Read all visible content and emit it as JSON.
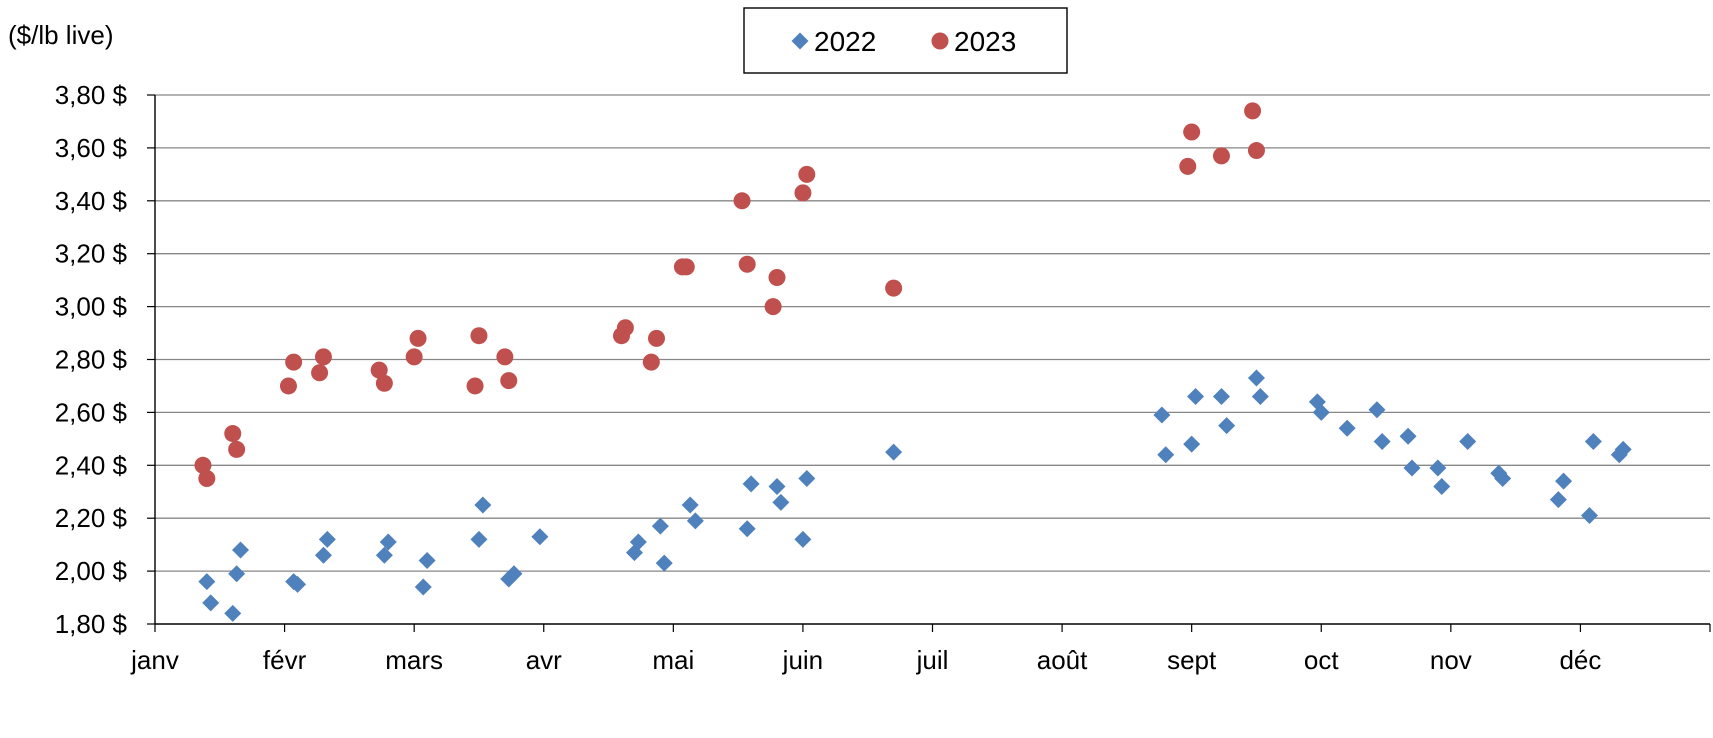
{
  "chart_data": {
    "type": "scatter",
    "title": "",
    "ylabel": "($/lb live)",
    "xlabel": "",
    "ylim": [
      1.8,
      3.8
    ],
    "yticks": [
      1.8,
      2.0,
      2.2,
      2.4,
      2.6,
      2.8,
      3.0,
      3.2,
      3.4,
      3.6,
      3.8
    ],
    "ytick_labels": [
      "1,80 $",
      "2,00 $",
      "2,20 $",
      "2,40 $",
      "2,60 $",
      "2,80 $",
      "3,00 $",
      "3,20 $",
      "3,40 $",
      "3,60 $",
      "3,80 $"
    ],
    "xlim": [
      0,
      12
    ],
    "x_unit": "months since janv",
    "xtick_labels": [
      "janv",
      "févr",
      "mars",
      "avr",
      "mai",
      "juin",
      "juil",
      "août",
      "sept",
      "oct",
      "nov",
      "déc"
    ],
    "grid": "horizontal",
    "legend_position": "top-center",
    "series": [
      {
        "name": "2022",
        "marker": "diamond",
        "color": "#4F81BD",
        "points": [
          [
            0.4,
            1.96
          ],
          [
            0.43,
            1.88
          ],
          [
            0.6,
            1.84
          ],
          [
            0.63,
            1.99
          ],
          [
            0.66,
            2.08
          ],
          [
            1.07,
            1.96
          ],
          [
            1.1,
            1.95
          ],
          [
            1.3,
            2.06
          ],
          [
            1.33,
            2.12
          ],
          [
            1.77,
            2.06
          ],
          [
            1.8,
            2.11
          ],
          [
            2.07,
            1.94
          ],
          [
            2.1,
            2.04
          ],
          [
            2.5,
            2.12
          ],
          [
            2.53,
            2.25
          ],
          [
            2.73,
            1.97
          ],
          [
            2.77,
            1.99
          ],
          [
            2.97,
            2.13
          ],
          [
            3.7,
            2.07
          ],
          [
            3.73,
            2.11
          ],
          [
            3.9,
            2.17
          ],
          [
            3.93,
            2.03
          ],
          [
            4.13,
            2.25
          ],
          [
            4.17,
            2.19
          ],
          [
            4.57,
            2.16
          ],
          [
            4.6,
            2.33
          ],
          [
            4.8,
            2.32
          ],
          [
            4.83,
            2.26
          ],
          [
            5.0,
            2.12
          ],
          [
            5.03,
            2.35
          ],
          [
            5.7,
            2.45
          ],
          [
            7.77,
            2.59
          ],
          [
            7.8,
            2.44
          ],
          [
            8.0,
            2.48
          ],
          [
            8.03,
            2.66
          ],
          [
            8.23,
            2.66
          ],
          [
            8.27,
            2.55
          ],
          [
            8.5,
            2.73
          ],
          [
            8.53,
            2.66
          ],
          [
            8.97,
            2.64
          ],
          [
            9.0,
            2.6
          ],
          [
            9.2,
            2.54
          ],
          [
            9.43,
            2.61
          ],
          [
            9.47,
            2.49
          ],
          [
            9.67,
            2.51
          ],
          [
            9.7,
            2.39
          ],
          [
            9.9,
            2.39
          ],
          [
            9.93,
            2.32
          ],
          [
            10.13,
            2.49
          ],
          [
            10.37,
            2.37
          ],
          [
            10.4,
            2.35
          ],
          [
            10.83,
            2.27
          ],
          [
            10.87,
            2.34
          ],
          [
            11.07,
            2.21
          ],
          [
            11.1,
            2.49
          ],
          [
            11.3,
            2.44
          ],
          [
            11.33,
            2.46
          ]
        ]
      },
      {
        "name": "2023",
        "marker": "circle",
        "color": "#C0504D",
        "points": [
          [
            0.37,
            2.4
          ],
          [
            0.4,
            2.35
          ],
          [
            0.6,
            2.52
          ],
          [
            0.63,
            2.46
          ],
          [
            1.03,
            2.7
          ],
          [
            1.07,
            2.79
          ],
          [
            1.27,
            2.75
          ],
          [
            1.3,
            2.81
          ],
          [
            1.73,
            2.76
          ],
          [
            1.77,
            2.71
          ],
          [
            2.0,
            2.81
          ],
          [
            2.03,
            2.88
          ],
          [
            2.47,
            2.7
          ],
          [
            2.5,
            2.89
          ],
          [
            2.7,
            2.81
          ],
          [
            2.73,
            2.72
          ],
          [
            3.6,
            2.89
          ],
          [
            3.63,
            2.92
          ],
          [
            3.83,
            2.79
          ],
          [
            3.87,
            2.88
          ],
          [
            4.07,
            3.15
          ],
          [
            4.1,
            3.15
          ],
          [
            4.53,
            3.4
          ],
          [
            4.57,
            3.16
          ],
          [
            4.77,
            3.0
          ],
          [
            4.8,
            3.11
          ],
          [
            5.0,
            3.43
          ],
          [
            5.03,
            3.5
          ],
          [
            5.7,
            3.07
          ],
          [
            7.97,
            3.53
          ],
          [
            8.0,
            3.66
          ],
          [
            8.23,
            3.57
          ],
          [
            8.47,
            3.74
          ],
          [
            8.5,
            3.59
          ]
        ]
      }
    ],
    "legend": [
      {
        "label": "2022",
        "marker": "diamond",
        "color": "#4F81BD"
      },
      {
        "label": "2023",
        "marker": "circle",
        "color": "#C0504D"
      }
    ]
  }
}
